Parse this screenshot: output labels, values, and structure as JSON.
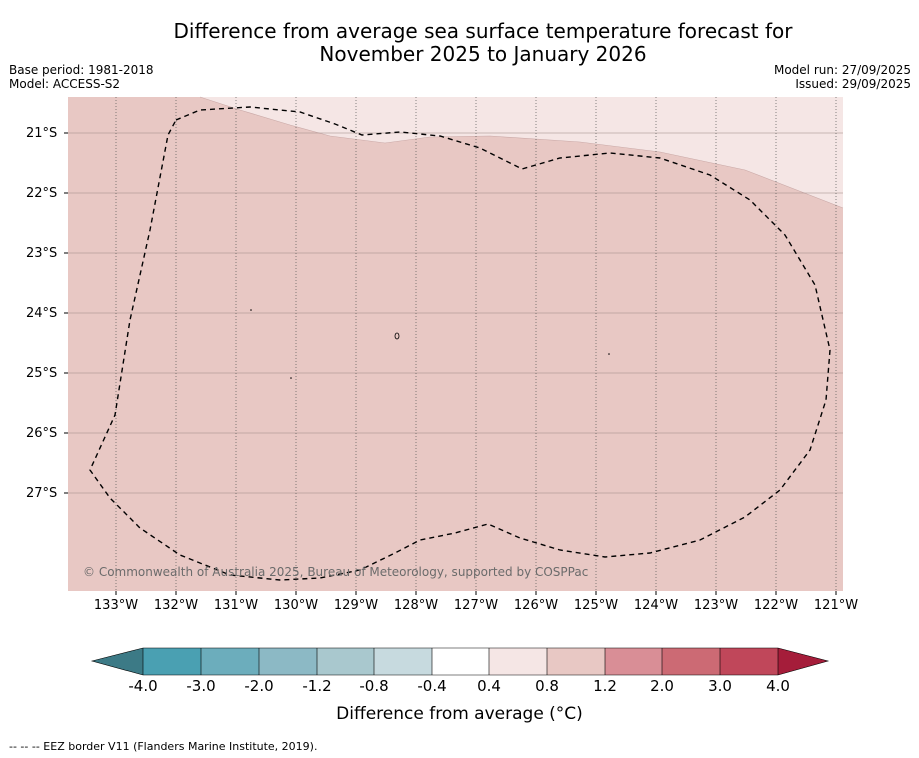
{
  "title_line1": "Difference from average sea surface temperature forecast for",
  "title_line2": "November 2025 to January 2026",
  "base_period": "Base period: 1981-2018",
  "model": "Model: ACCESS-S2",
  "model_run": "Model run: 27/09/2025",
  "issued": "Issued: 29/09/2025",
  "lat_labels": [
    "21°S",
    "22°S",
    "23°S",
    "24°S",
    "25°S",
    "26°S",
    "27°S"
  ],
  "lon_labels": [
    "133°W",
    "132°W",
    "131°W",
    "130°W",
    "129°W",
    "128°W",
    "127°W",
    "126°W",
    "125°W",
    "124°W",
    "123°W",
    "122°W",
    "121°W"
  ],
  "credit": "© Commonwealth of Australia 2025, Bureau of Meteorology, supported by COSPPac",
  "colorbar": {
    "ticks": [
      "-4.0",
      "-3.0",
      "-2.0",
      "-1.2",
      "-0.8",
      "-0.4",
      "0.4",
      "0.8",
      "1.2",
      "2.0",
      "3.0",
      "4.0"
    ],
    "title": "Difference from average (°C)",
    "colors": [
      "#4aa0b2",
      "#6cadbc",
      "#8cb9c5",
      "#a9c8ce",
      "#c7dadf",
      "#ffffff",
      "#f5e6e5",
      "#e8c8c4",
      "#d98e96",
      "#cc6a74",
      "#c0475a"
    ],
    "low_extend_color": "#3c7a86",
    "high_extend_color": "#a51d3a"
  },
  "fill_colors": {
    "anomaly_0_8_to_1_2": "#e8c8c4",
    "anomaly_0_4_to_0_8": "#f5e6e5"
  },
  "legend_text": "--  --  -- EEZ border V11 (Flanders Marine Institute, 2019)."
}
